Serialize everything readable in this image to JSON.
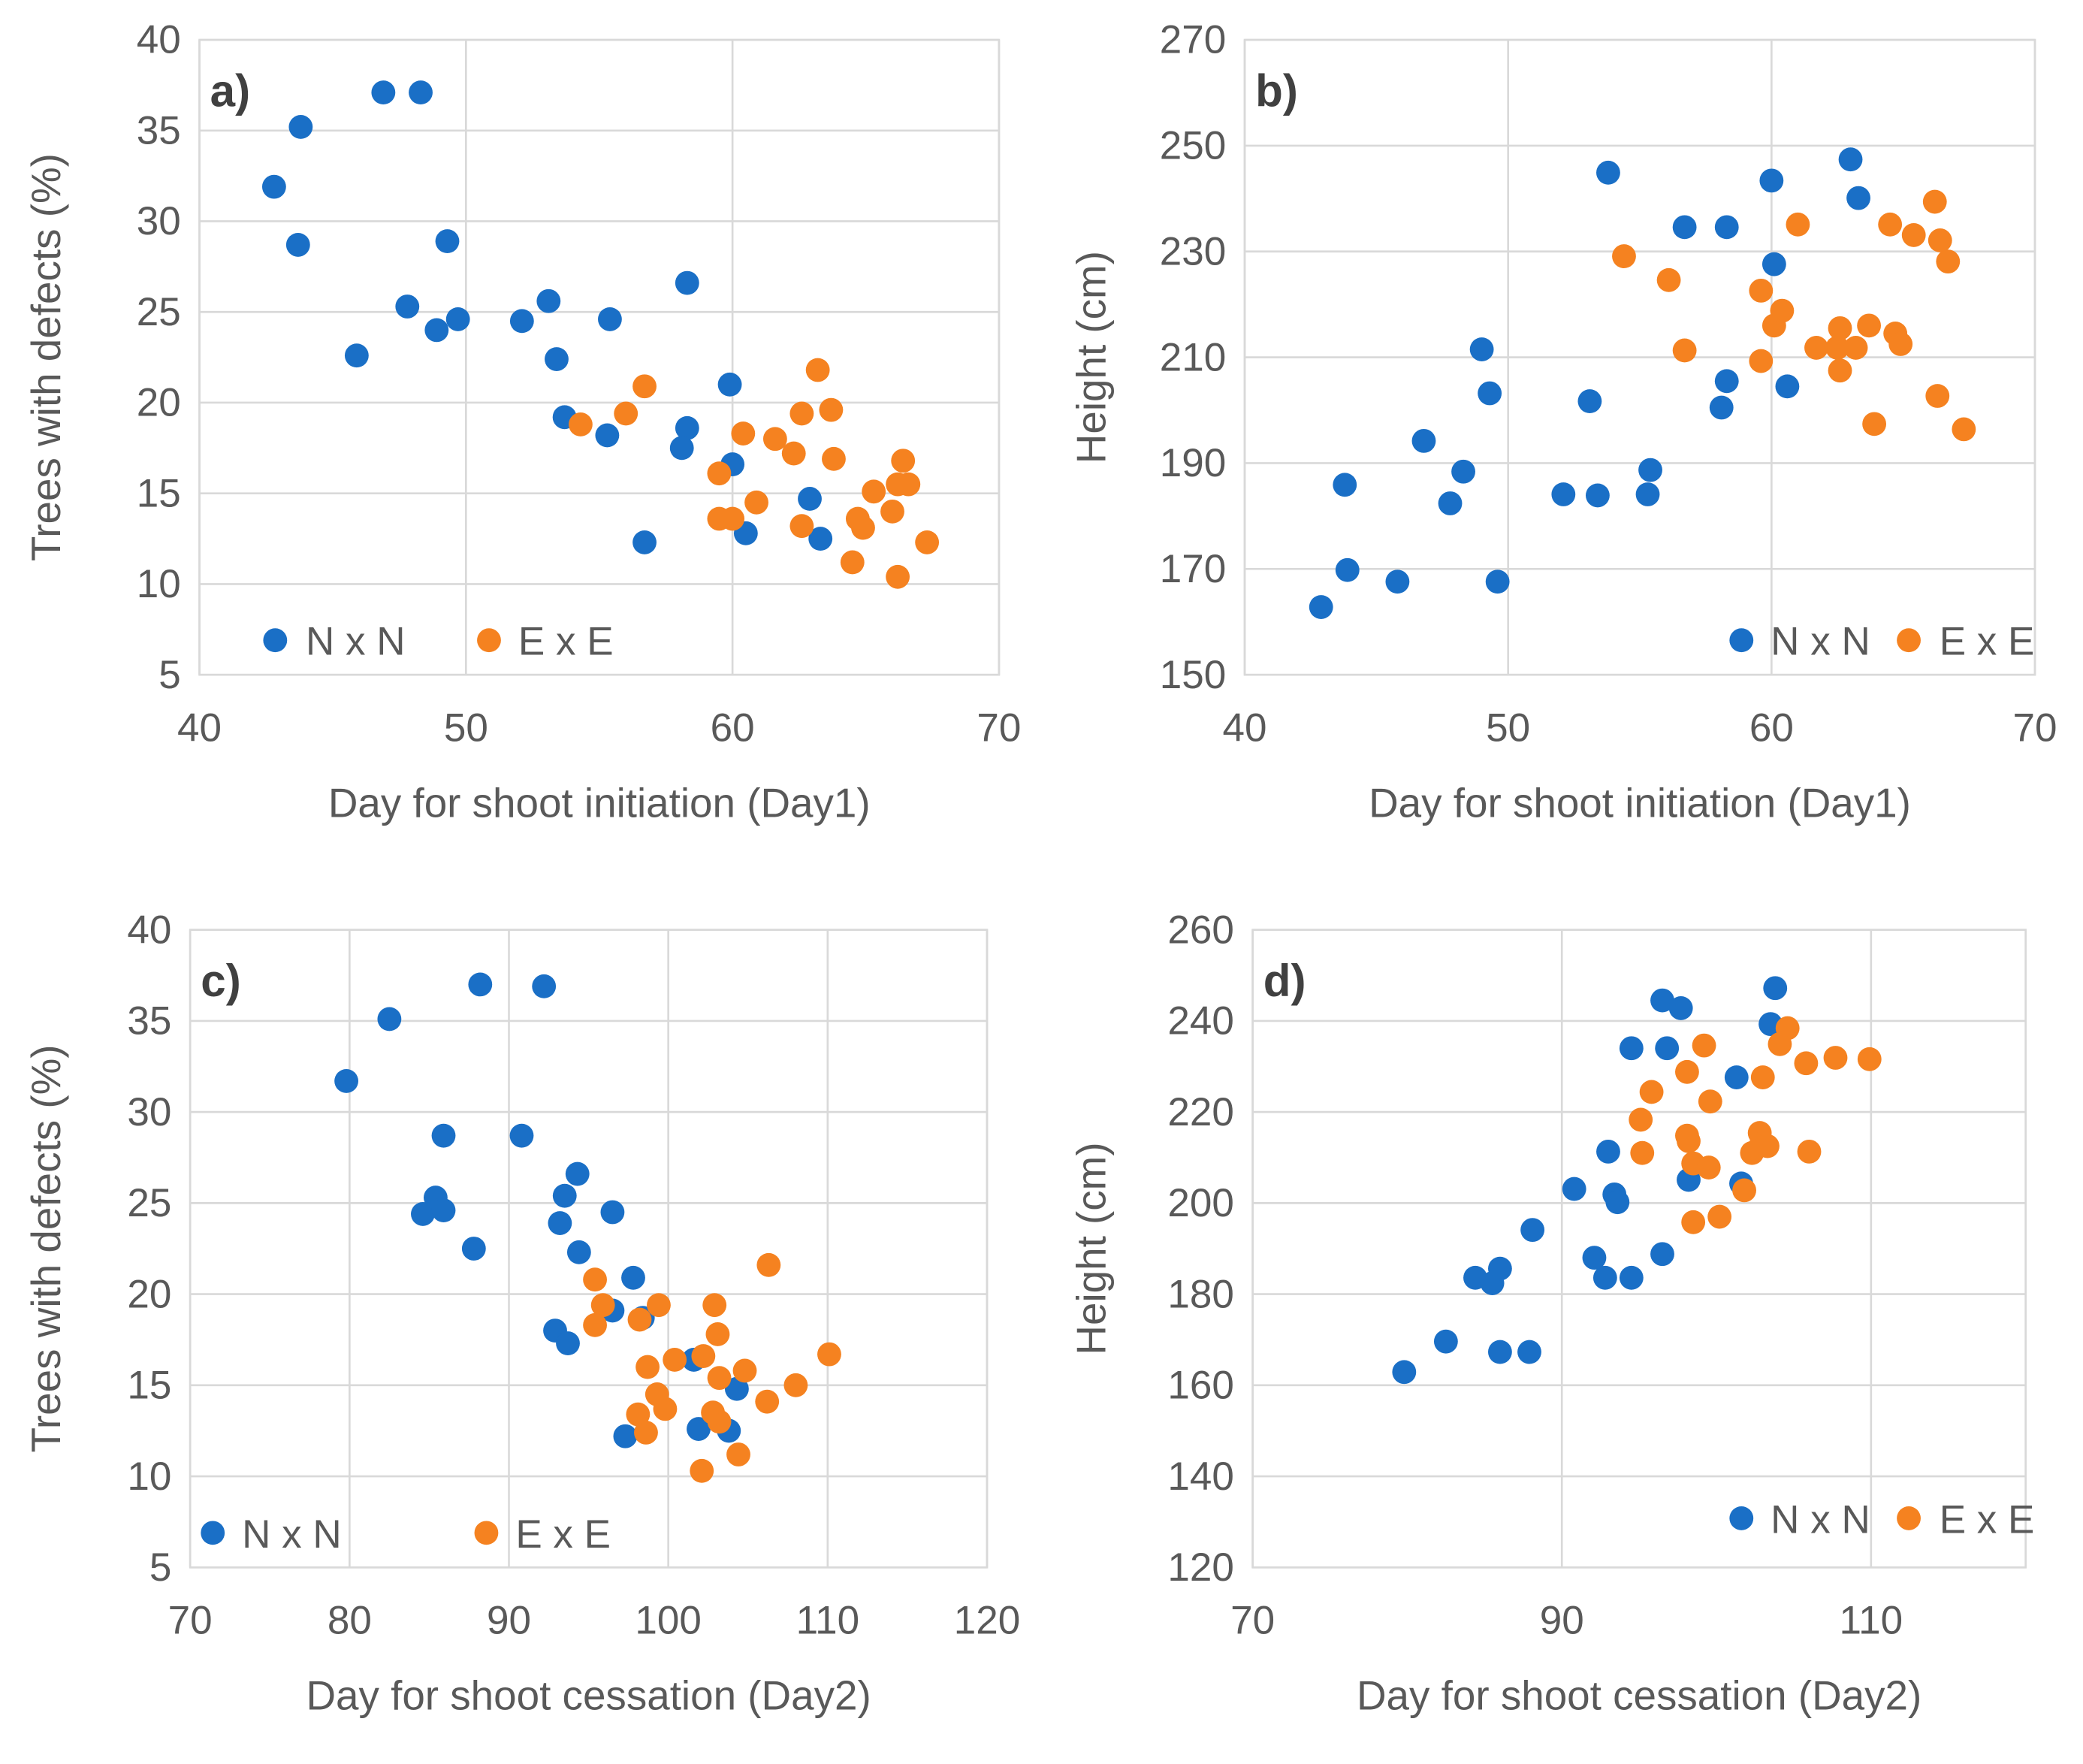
{
  "colors": {
    "NxN": "#1A6FC6",
    "ExE": "#F58220",
    "grid": "#D9D9D9"
  },
  "chart_data": [
    {
      "type": "scatter",
      "panel_label": "a)",
      "xlabel": "Day for shoot initiation (Day1)",
      "ylabel": "Trees with defects (%)",
      "xlim": [
        40,
        70
      ],
      "ylim": [
        5,
        40
      ],
      "xticks": [
        "40",
        "50",
        "60",
        "70"
      ],
      "yticks": [
        "5",
        "10",
        "15",
        "20",
        "25",
        "30",
        "35",
        "40"
      ],
      "grid": true,
      "legend": "bottom-left",
      "series": [
        {
          "name": "N x N",
          "points": [
            [
              42.8,
              31.9
            ],
            [
              43.8,
              35.2
            ],
            [
              43.7,
              28.7
            ],
            [
              45.9,
              22.6
            ],
            [
              46.9,
              37.1
            ],
            [
              48.3,
              37.1
            ],
            [
              47.8,
              25.3
            ],
            [
              48.9,
              24.0
            ],
            [
              49.3,
              28.9
            ],
            [
              49.7,
              24.6
            ],
            [
              52.1,
              24.5
            ],
            [
              53.1,
              25.6
            ],
            [
              53.4,
              22.4
            ],
            [
              53.7,
              19.2
            ],
            [
              55.3,
              18.2
            ],
            [
              55.4,
              24.6
            ],
            [
              56.7,
              12.3
            ],
            [
              58.3,
              26.6
            ],
            [
              58.3,
              18.6
            ],
            [
              58.1,
              17.5
            ],
            [
              59.9,
              21.0
            ],
            [
              60.0,
              16.6
            ],
            [
              60.5,
              12.8
            ],
            [
              62.9,
              14.7
            ],
            [
              63.3,
              12.5
            ]
          ]
        },
        {
          "name": "E x E",
          "points": [
            [
              54.3,
              18.8
            ],
            [
              56.0,
              19.4
            ],
            [
              56.7,
              20.9
            ],
            [
              59.5,
              16.1
            ],
            [
              59.5,
              13.6
            ],
            [
              60.0,
              13.6
            ],
            [
              60.4,
              18.3
            ],
            [
              60.9,
              14.5
            ],
            [
              61.6,
              18.0
            ],
            [
              62.3,
              17.2
            ],
            [
              62.6,
              13.2
            ],
            [
              62.6,
              19.4
            ],
            [
              63.2,
              21.8
            ],
            [
              63.7,
              19.6
            ],
            [
              63.8,
              16.9
            ],
            [
              64.5,
              11.2
            ],
            [
              64.7,
              13.6
            ],
            [
              64.9,
              13.1
            ],
            [
              65.3,
              15.1
            ],
            [
              66.0,
              14.0
            ],
            [
              66.2,
              15.5
            ],
            [
              66.4,
              16.8
            ],
            [
              66.6,
              15.5
            ],
            [
              66.2,
              10.4
            ],
            [
              67.3,
              12.3
            ]
          ]
        }
      ]
    },
    {
      "type": "scatter",
      "panel_label": "b)",
      "xlabel": "Day for shoot initiation (Day1)",
      "ylabel": "Height (cm)",
      "xlim": [
        40,
        70
      ],
      "ylim": [
        150,
        270
      ],
      "xticks": [
        "40",
        "50",
        "60",
        "70"
      ],
      "yticks": [
        "150",
        "170",
        "190",
        "210",
        "230",
        "250",
        "270"
      ],
      "grid": true,
      "legend": "bottom-right",
      "series": [
        {
          "name": "N x N",
          "points": [
            [
              42.9,
              162.8
            ],
            [
              43.8,
              185.9
            ],
            [
              43.9,
              169.8
            ],
            [
              45.8,
              167.6
            ],
            [
              46.8,
              194.2
            ],
            [
              47.8,
              182.4
            ],
            [
              48.3,
              188.4
            ],
            [
              49.0,
              211.5
            ],
            [
              49.3,
              203.2
            ],
            [
              49.6,
              167.6
            ],
            [
              52.1,
              184.1
            ],
            [
              53.1,
              201.7
            ],
            [
              53.4,
              183.9
            ],
            [
              53.8,
              244.9
            ],
            [
              55.3,
              184.1
            ],
            [
              55.4,
              188.7
            ],
            [
              56.7,
              234.6
            ],
            [
              58.3,
              234.6
            ],
            [
              58.3,
              205.5
            ],
            [
              58.1,
              200.5
            ],
            [
              60.0,
              243.4
            ],
            [
              60.1,
              227.6
            ],
            [
              60.6,
              204.5
            ],
            [
              63.0,
              247.4
            ],
            [
              63.3,
              240.1
            ]
          ]
        },
        {
          "name": "E x E",
          "points": [
            [
              54.4,
              229.1
            ],
            [
              56.1,
              224.6
            ],
            [
              56.7,
              211.3
            ],
            [
              59.6,
              222.6
            ],
            [
              59.6,
              209.3
            ],
            [
              60.1,
              216.0
            ],
            [
              60.4,
              218.8
            ],
            [
              61.0,
              235.1
            ],
            [
              61.7,
              211.8
            ],
            [
              62.5,
              211.8
            ],
            [
              62.6,
              215.5
            ],
            [
              62.6,
              207.5
            ],
            [
              63.2,
              211.8
            ],
            [
              63.7,
              216.0
            ],
            [
              63.9,
              197.4
            ],
            [
              64.5,
              235.1
            ],
            [
              64.7,
              214.5
            ],
            [
              64.9,
              212.5
            ],
            [
              65.4,
              233.1
            ],
            [
              66.2,
              239.4
            ],
            [
              66.4,
              232.1
            ],
            [
              66.3,
              202.7
            ],
            [
              66.7,
              228.1
            ],
            [
              67.3,
              196.4
            ]
          ]
        }
      ]
    },
    {
      "type": "scatter",
      "panel_label": "c)",
      "xlabel": "Day for shoot cessation (Day2)",
      "ylabel": "Trees with defects (%)",
      "xlim": [
        70,
        120
      ],
      "ylim": [
        5,
        40
      ],
      "xticks": [
        "70",
        "80",
        "90",
        "100",
        "110",
        "120"
      ],
      "yticks": [
        "5",
        "10",
        "15",
        "20",
        "25",
        "30",
        "35",
        "40"
      ],
      "grid": true,
      "legend": "bottom-left",
      "series": [
        {
          "name": "N x N",
          "points": [
            [
              79.8,
              31.7
            ],
            [
              82.5,
              35.1
            ],
            [
              88.2,
              37.0
            ],
            [
              92.2,
              36.9
            ],
            [
              85.9,
              28.7
            ],
            [
              90.8,
              28.7
            ],
            [
              84.6,
              24.4
            ],
            [
              85.4,
              25.3
            ],
            [
              85.9,
              24.6
            ],
            [
              87.8,
              22.5
            ],
            [
              94.3,
              26.6
            ],
            [
              93.5,
              25.4
            ],
            [
              93.2,
              23.9
            ],
            [
              94.4,
              22.3
            ],
            [
              96.5,
              24.5
            ],
            [
              97.8,
              20.9
            ],
            [
              96.5,
              19.1
            ],
            [
              92.9,
              18.0
            ],
            [
              93.7,
              17.3
            ],
            [
              98.4,
              18.7
            ],
            [
              97.3,
              12.2
            ],
            [
              101.6,
              16.4
            ],
            [
              101.9,
              12.6
            ],
            [
              104.3,
              14.8
            ],
            [
              103.8,
              12.5
            ]
          ]
        },
        {
          "name": "E x E",
          "points": [
            [
              95.4,
              20.8
            ],
            [
              95.9,
              19.4
            ],
            [
              95.4,
              18.3
            ],
            [
              98.2,
              18.6
            ],
            [
              98.7,
              16.0
            ],
            [
              99.4,
              19.4
            ],
            [
              99.3,
              14.5
            ],
            [
              99.8,
              13.7
            ],
            [
              98.1,
              13.4
            ],
            [
              98.6,
              12.4
            ],
            [
              100.4,
              16.4
            ],
            [
              102.2,
              16.6
            ],
            [
              102.9,
              19.4
            ],
            [
              103.1,
              17.8
            ],
            [
              103.2,
              15.4
            ],
            [
              102.8,
              13.5
            ],
            [
              103.2,
              13.0
            ],
            [
              102.1,
              10.3
            ],
            [
              104.8,
              15.8
            ],
            [
              104.4,
              11.2
            ],
            [
              106.3,
              21.6
            ],
            [
              106.2,
              14.1
            ],
            [
              108.0,
              15.0
            ],
            [
              110.1,
              16.7
            ]
          ]
        }
      ]
    },
    {
      "type": "scatter",
      "panel_label": "d)",
      "xlabel": "Day for shoot cessation (Day2)",
      "ylabel": "Height (cm)",
      "xlim": [
        70,
        120
      ],
      "ylim": [
        120,
        260
      ],
      "xticks": [
        "70",
        "90",
        "110"
      ],
      "yticks": [
        "120",
        "140",
        "160",
        "180",
        "200",
        "220",
        "240",
        "260"
      ],
      "grid": true,
      "legend": "bottom-right",
      "series": [
        {
          "name": "N x N",
          "points": [
            [
              79.8,
              162.9
            ],
            [
              82.5,
              169.6
            ],
            [
              84.4,
              183.6
            ],
            [
              85.5,
              182.4
            ],
            [
              86.0,
              185.6
            ],
            [
              86.0,
              167.3
            ],
            [
              87.9,
              167.3
            ],
            [
              88.1,
              194.1
            ],
            [
              90.8,
              203.1
            ],
            [
              93.0,
              211.3
            ],
            [
              92.1,
              188.0
            ],
            [
              92.8,
              183.6
            ],
            [
              93.4,
              201.9
            ],
            [
              93.6,
              200.2
            ],
            [
              94.5,
              183.6
            ],
            [
              94.5,
              234.0
            ],
            [
              96.5,
              244.5
            ],
            [
              97.7,
              242.8
            ],
            [
              96.8,
              234.0
            ],
            [
              96.5,
              188.8
            ],
            [
              98.2,
              205.1
            ],
            [
              101.3,
              227.6
            ],
            [
              101.6,
              204.3
            ],
            [
              103.8,
              247.2
            ],
            [
              103.5,
              239.3
            ]
          ]
        },
        {
          "name": "E x E",
          "points": [
            [
              95.1,
              218.3
            ],
            [
              95.8,
              224.4
            ],
            [
              95.2,
              211.0
            ],
            [
              98.1,
              228.8
            ],
            [
              99.2,
              234.6
            ],
            [
              99.6,
              222.3
            ],
            [
              98.1,
              214.8
            ],
            [
              98.2,
              213.6
            ],
            [
              98.5,
              208.7
            ],
            [
              99.5,
              207.8
            ],
            [
              98.5,
              195.8
            ],
            [
              100.2,
              197.0
            ],
            [
              101.8,
              202.8
            ],
            [
              102.3,
              211.0
            ],
            [
              102.8,
              215.4
            ],
            [
              102.9,
              213.0
            ],
            [
              103.3,
              212.5
            ],
            [
              103.0,
              227.6
            ],
            [
              104.1,
              234.9
            ],
            [
              104.6,
              238.4
            ],
            [
              106.0,
              211.3
            ],
            [
              105.8,
              230.7
            ],
            [
              107.7,
              231.9
            ],
            [
              109.9,
              231.6
            ]
          ]
        }
      ]
    }
  ]
}
